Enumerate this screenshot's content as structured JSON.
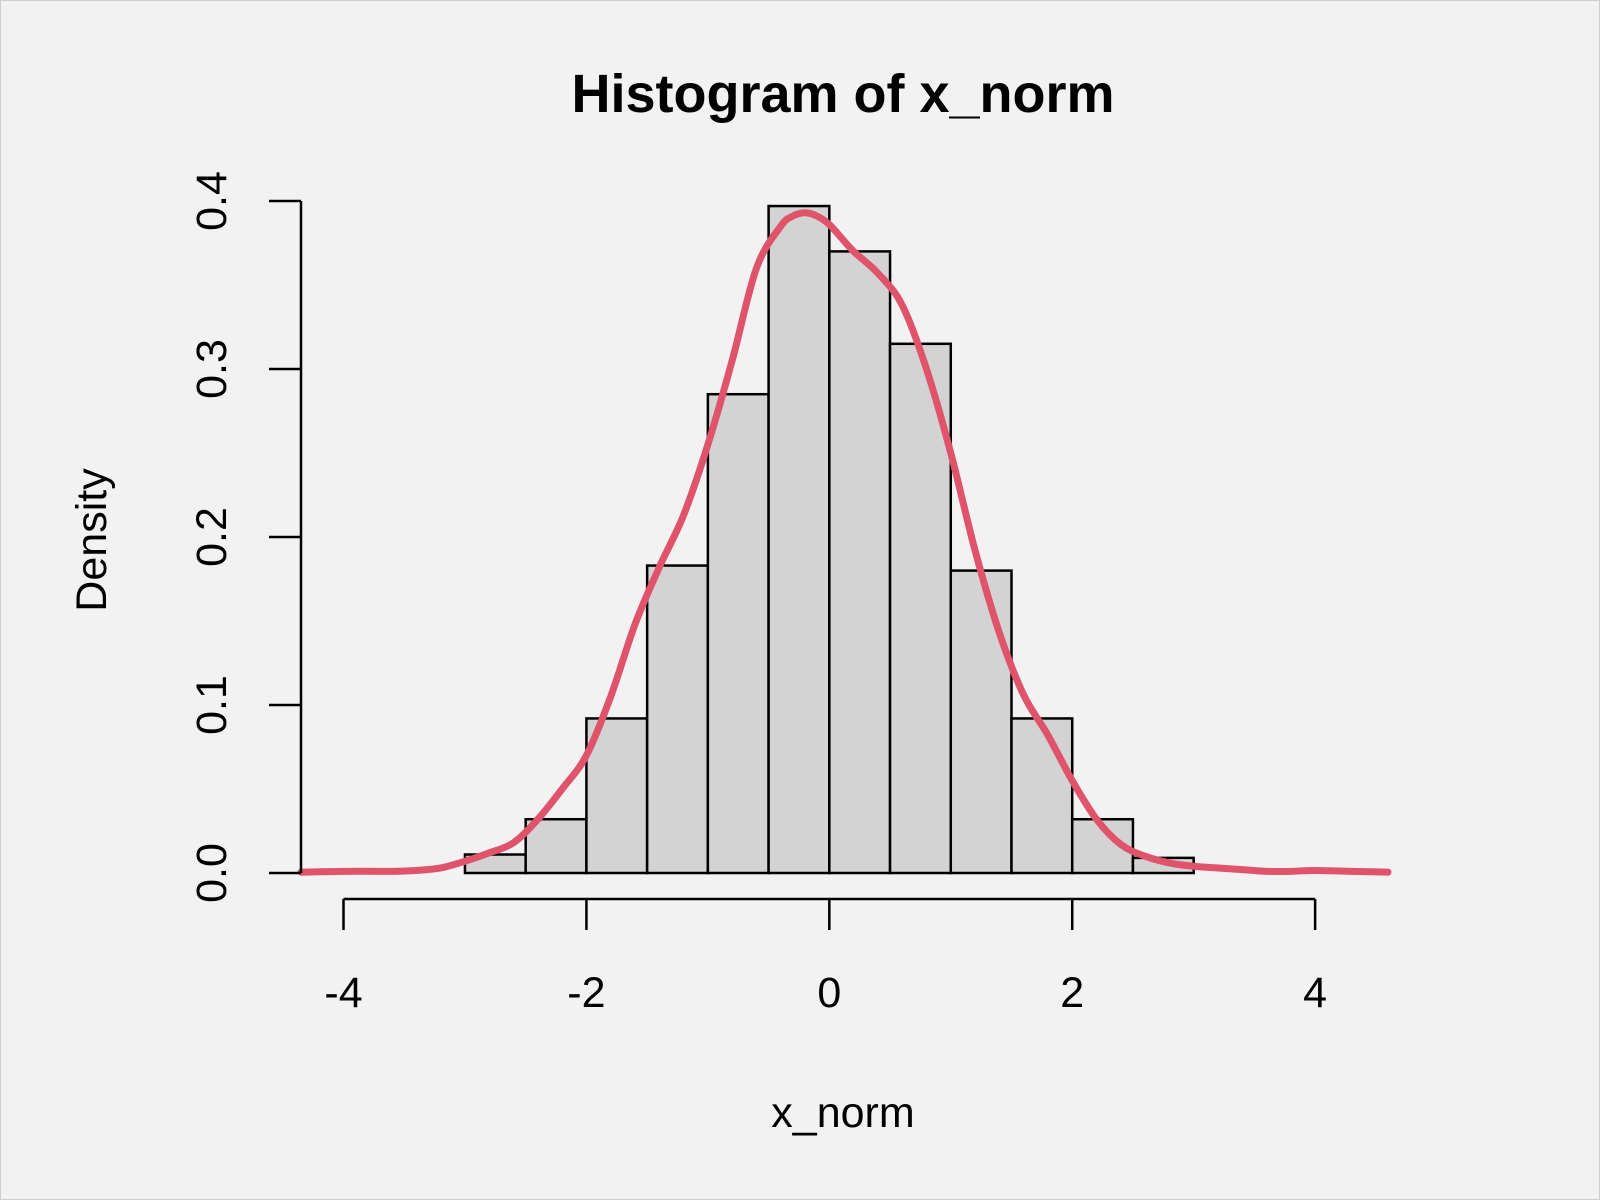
{
  "chart_data": {
    "type": "bar",
    "title": "Histogram of x_norm",
    "xlabel": "x_norm",
    "ylabel": "Density",
    "xlim": [
      -4.35,
      4.6
    ],
    "ylim": [
      0,
      0.4
    ],
    "x_ticks": [
      -4,
      -2,
      0,
      2,
      4
    ],
    "x_tick_labels": [
      "-4",
      "-2",
      "0",
      "2",
      "4"
    ],
    "y_ticks": [
      0,
      0.1,
      0.2,
      0.3,
      0.4
    ],
    "y_tick_labels": [
      "0.0",
      "0.1",
      "0.2",
      "0.3",
      "0.4"
    ],
    "grid": false,
    "bins": [
      {
        "x0": -3.0,
        "x1": -2.5,
        "density": 0.011
      },
      {
        "x0": -2.5,
        "x1": -2.0,
        "density": 0.032
      },
      {
        "x0": -2.0,
        "x1": -1.5,
        "density": 0.092
      },
      {
        "x0": -1.5,
        "x1": -1.0,
        "density": 0.183
      },
      {
        "x0": -1.0,
        "x1": -0.5,
        "density": 0.285
      },
      {
        "x0": -0.5,
        "x1": 0.0,
        "density": 0.397
      },
      {
        "x0": 0.0,
        "x1": 0.5,
        "density": 0.37
      },
      {
        "x0": 0.5,
        "x1": 1.0,
        "density": 0.315
      },
      {
        "x0": 1.0,
        "x1": 1.5,
        "density": 0.18
      },
      {
        "x0": 1.5,
        "x1": 2.0,
        "density": 0.092
      },
      {
        "x0": 2.0,
        "x1": 2.5,
        "density": 0.032
      },
      {
        "x0": 2.5,
        "x1": 3.0,
        "density": 0.009
      }
    ],
    "density_curve": {
      "x": [
        -4.35,
        -4.0,
        -3.6,
        -3.4,
        -3.2,
        -3.0,
        -2.8,
        -2.6,
        -2.4,
        -2.2,
        -2.0,
        -1.8,
        -1.6,
        -1.4,
        -1.2,
        -1.0,
        -0.8,
        -0.6,
        -0.4,
        -0.3,
        -0.2,
        -0.1,
        0.0,
        0.1,
        0.2,
        0.4,
        0.6,
        0.8,
        1.0,
        1.2,
        1.4,
        1.6,
        1.8,
        2.0,
        2.2,
        2.4,
        2.6,
        2.8,
        3.0,
        3.2,
        3.4,
        3.6,
        3.8,
        4.0,
        4.3,
        4.6
      ],
      "y": [
        0.0005,
        0.001,
        0.001,
        0.0015,
        0.003,
        0.007,
        0.012,
        0.018,
        0.032,
        0.05,
        0.07,
        0.105,
        0.148,
        0.182,
        0.213,
        0.255,
        0.305,
        0.36,
        0.385,
        0.391,
        0.393,
        0.391,
        0.386,
        0.378,
        0.37,
        0.357,
        0.338,
        0.3,
        0.25,
        0.192,
        0.143,
        0.106,
        0.082,
        0.055,
        0.032,
        0.017,
        0.01,
        0.006,
        0.004,
        0.003,
        0.002,
        0.001,
        0.001,
        0.0015,
        0.001,
        0.0005
      ],
      "color": "#df536b"
    },
    "bar_fill": "#d3d3d3",
    "bar_stroke": "#000000"
  }
}
